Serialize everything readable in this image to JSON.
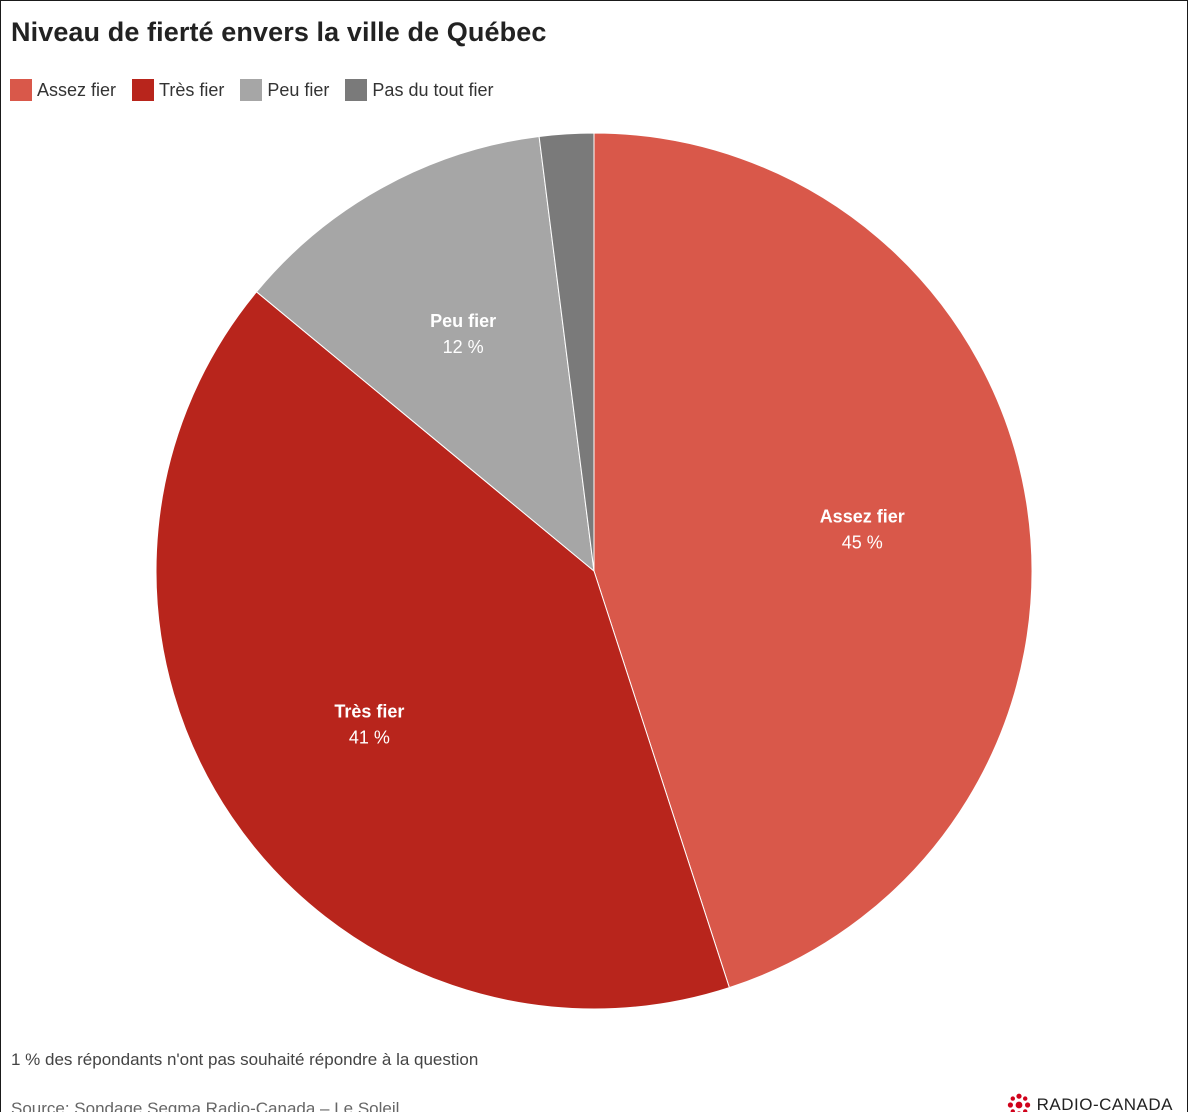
{
  "chart_data": {
    "type": "pie",
    "title": "Niveau de fierté envers la ville de Québec",
    "legend": [
      {
        "label": "Assez fier",
        "color": "#d9584a"
      },
      {
        "label": "Très fier",
        "color": "#b8251c"
      },
      {
        "label": "Peu fier",
        "color": "#a6a6a6"
      },
      {
        "label": "Pas du tout fier",
        "color": "#7a7a7a"
      }
    ],
    "slices": [
      {
        "label": "Assez fier",
        "value": 45,
        "display": "45 %",
        "color": "#d9584a"
      },
      {
        "label": "Très fier",
        "value": 41,
        "display": "41 %",
        "color": "#b8251c"
      },
      {
        "label": "Peu fier",
        "value": 12,
        "display": "12 %",
        "color": "#a6a6a6"
      },
      {
        "label": "Pas du tout fier",
        "value": 2,
        "display": "",
        "color": "#7a7a7a"
      }
    ],
    "legend_position": "top-left"
  },
  "note": "1 % des répondants n'ont pas souhaité répondre à la question",
  "source": "Source: Sondage Segma Radio-Canada – Le Soleil",
  "logo_text": "RADIO-CANADA",
  "logo_icon": "radio-canada-gem-icon"
}
